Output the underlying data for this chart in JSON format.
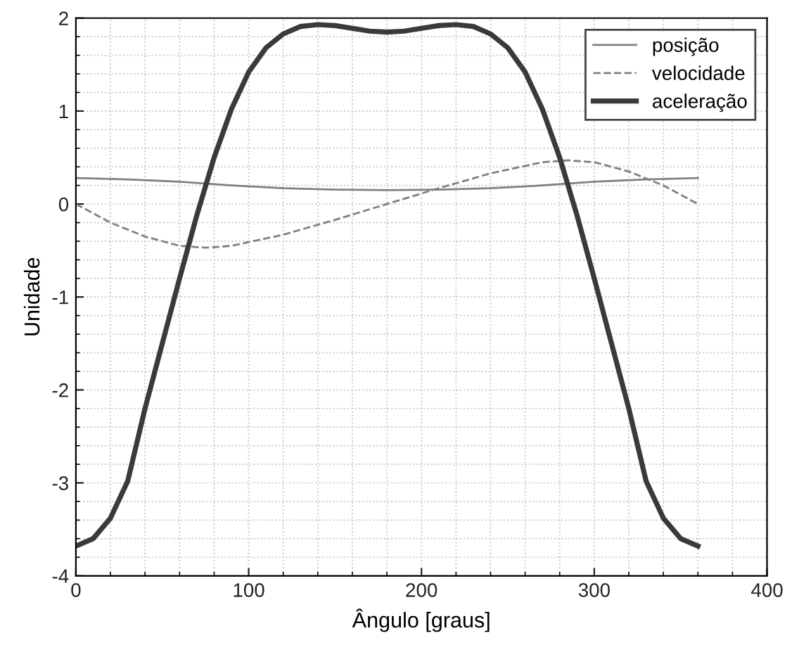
{
  "chart_data": {
    "type": "line",
    "xlabel": "Ângulo [graus]",
    "ylabel": "Unidade",
    "xlim": [
      0,
      400
    ],
    "xticks": [
      0,
      100,
      200,
      300,
      400
    ],
    "ylim": [
      -4,
      2
    ],
    "yticks": [
      -4,
      -3,
      -2,
      -1,
      0,
      1,
      2
    ],
    "grid": true,
    "legend": "top right",
    "marker": "none",
    "series": [
      {
        "name": "posição",
        "color": "#808080",
        "line_style": "solid",
        "x": [
          0,
          30,
          60,
          90,
          120,
          150,
          180,
          210,
          240,
          270,
          300,
          330,
          360
        ],
        "values": [
          0.28,
          0.265,
          0.24,
          0.2,
          0.17,
          0.155,
          0.15,
          0.155,
          0.17,
          0.2,
          0.24,
          0.265,
          0.28
        ]
      },
      {
        "name": "velocidade",
        "color": "#808080",
        "line_style": "dashed",
        "x": [
          0,
          20,
          40,
          60,
          75,
          90,
          120,
          150,
          180,
          210,
          240,
          270,
          285,
          300,
          320,
          340,
          360
        ],
        "values": [
          0,
          -0.2,
          -0.35,
          -0.45,
          -0.47,
          -0.45,
          -0.33,
          -0.17,
          0,
          0.17,
          0.33,
          0.45,
          0.47,
          0.45,
          0.35,
          0.2,
          0
        ]
      },
      {
        "name": "aceleração",
        "color": "#3a3a3a",
        "line_style": "solid",
        "x": [
          0,
          10,
          20,
          30,
          40,
          50,
          60,
          70,
          80,
          90,
          100,
          110,
          120,
          130,
          140,
          150,
          160,
          170,
          180,
          190,
          200,
          210,
          220,
          230,
          240,
          250,
          260,
          270,
          280,
          290,
          300,
          310,
          320,
          330,
          340,
          350,
          360
        ],
        "values": [
          -3.68,
          -3.6,
          -3.38,
          -2.98,
          -2.2,
          -1.5,
          -0.8,
          -0.12,
          0.5,
          1.02,
          1.42,
          1.68,
          1.83,
          1.91,
          1.93,
          1.92,
          1.89,
          1.86,
          1.85,
          1.86,
          1.89,
          1.92,
          1.93,
          1.91,
          1.83,
          1.68,
          1.42,
          1.02,
          0.5,
          -0.12,
          -0.8,
          -1.5,
          -2.2,
          -2.98,
          -3.38,
          -3.6,
          -3.68
        ]
      }
    ]
  }
}
